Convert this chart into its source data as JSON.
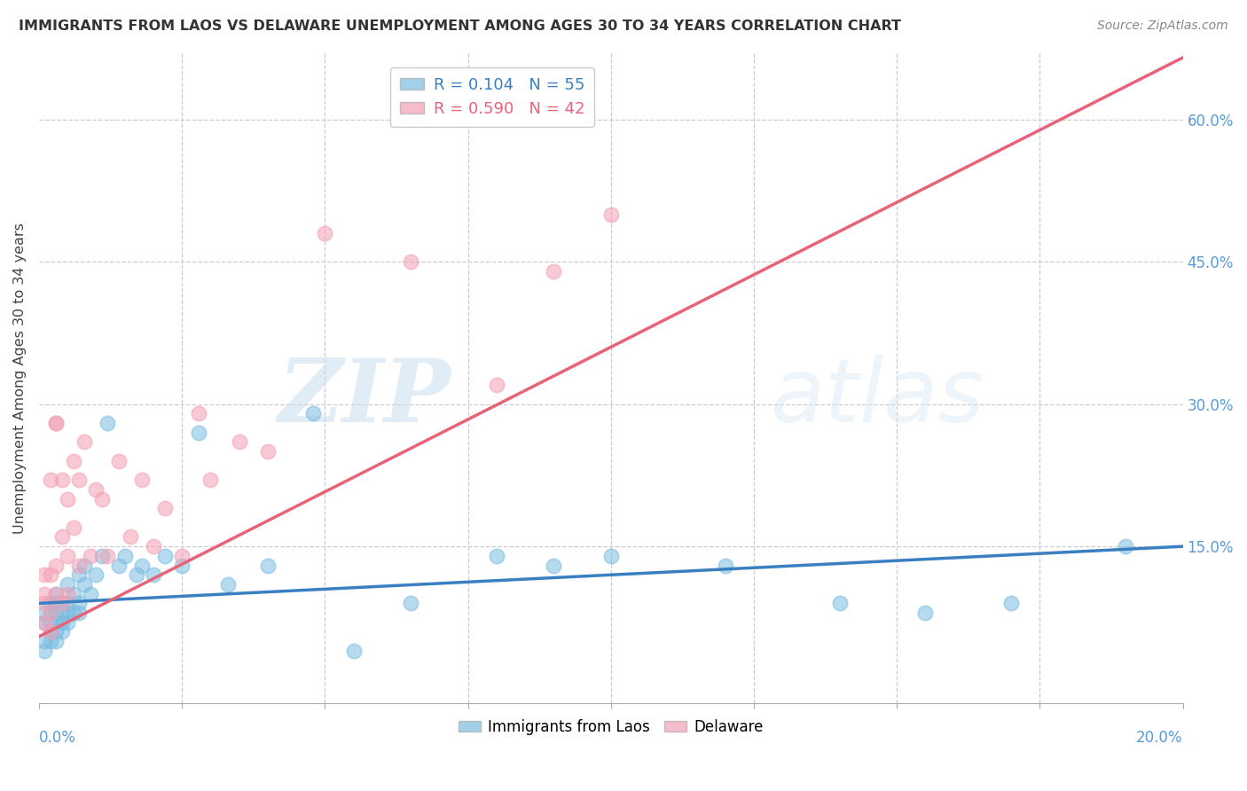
{
  "title": "IMMIGRANTS FROM LAOS VS DELAWARE UNEMPLOYMENT AMONG AGES 30 TO 34 YEARS CORRELATION CHART",
  "source": "Source: ZipAtlas.com",
  "ylabel": "Unemployment Among Ages 30 to 34 years",
  "right_yticks": [
    0.0,
    0.15,
    0.3,
    0.45,
    0.6
  ],
  "right_yticklabels": [
    "",
    "15.0%",
    "30.0%",
    "45.0%",
    "60.0%"
  ],
  "xmin": 0.0,
  "xmax": 0.2,
  "ymin": -0.015,
  "ymax": 0.67,
  "legend_blue_r": "R = 0.104",
  "legend_blue_n": "N = 55",
  "legend_pink_r": "R = 0.590",
  "legend_pink_n": "N = 42",
  "blue_color": "#7bbde0",
  "pink_color": "#f4a0b5",
  "blue_line_color": "#3a7fc1",
  "pink_line_color": "#e8637a",
  "watermark_zip": "ZIP",
  "watermark_atlas": "atlas",
  "blue_scatter_x": [
    0.001,
    0.001,
    0.001,
    0.001,
    0.002,
    0.002,
    0.002,
    0.002,
    0.002,
    0.003,
    0.003,
    0.003,
    0.003,
    0.003,
    0.003,
    0.004,
    0.004,
    0.004,
    0.004,
    0.005,
    0.005,
    0.005,
    0.005,
    0.006,
    0.006,
    0.007,
    0.007,
    0.007,
    0.008,
    0.008,
    0.009,
    0.01,
    0.011,
    0.012,
    0.014,
    0.015,
    0.017,
    0.018,
    0.02,
    0.022,
    0.025,
    0.028,
    0.033,
    0.04,
    0.048,
    0.055,
    0.065,
    0.08,
    0.09,
    0.1,
    0.12,
    0.14,
    0.155,
    0.17,
    0.19
  ],
  "blue_scatter_y": [
    0.05,
    0.07,
    0.08,
    0.04,
    0.06,
    0.07,
    0.08,
    0.05,
    0.09,
    0.06,
    0.07,
    0.08,
    0.09,
    0.05,
    0.1,
    0.07,
    0.08,
    0.09,
    0.06,
    0.07,
    0.08,
    0.09,
    0.11,
    0.08,
    0.1,
    0.09,
    0.12,
    0.08,
    0.11,
    0.13,
    0.1,
    0.12,
    0.14,
    0.28,
    0.13,
    0.14,
    0.12,
    0.13,
    0.12,
    0.14,
    0.13,
    0.27,
    0.11,
    0.13,
    0.29,
    0.04,
    0.09,
    0.14,
    0.13,
    0.14,
    0.13,
    0.09,
    0.08,
    0.09,
    0.15
  ],
  "pink_scatter_x": [
    0.001,
    0.001,
    0.001,
    0.001,
    0.002,
    0.002,
    0.002,
    0.002,
    0.003,
    0.003,
    0.003,
    0.003,
    0.004,
    0.004,
    0.004,
    0.005,
    0.005,
    0.005,
    0.006,
    0.006,
    0.007,
    0.007,
    0.008,
    0.009,
    0.01,
    0.011,
    0.012,
    0.014,
    0.016,
    0.018,
    0.02,
    0.022,
    0.025,
    0.028,
    0.03,
    0.035,
    0.04,
    0.05,
    0.065,
    0.08,
    0.09,
    0.1
  ],
  "pink_scatter_y": [
    0.1,
    0.12,
    0.07,
    0.09,
    0.12,
    0.08,
    0.22,
    0.06,
    0.28,
    0.28,
    0.1,
    0.13,
    0.16,
    0.22,
    0.09,
    0.2,
    0.14,
    0.1,
    0.24,
    0.17,
    0.22,
    0.13,
    0.26,
    0.14,
    0.21,
    0.2,
    0.14,
    0.24,
    0.16,
    0.22,
    0.15,
    0.19,
    0.14,
    0.29,
    0.22,
    0.26,
    0.25,
    0.48,
    0.45,
    0.32,
    0.44,
    0.5
  ],
  "blue_trendline_x": [
    0.0,
    0.2
  ],
  "blue_trendline_y": [
    0.09,
    0.15
  ],
  "pink_trendline_x": [
    0.0,
    0.2
  ],
  "pink_trendline_y": [
    0.055,
    0.665
  ]
}
